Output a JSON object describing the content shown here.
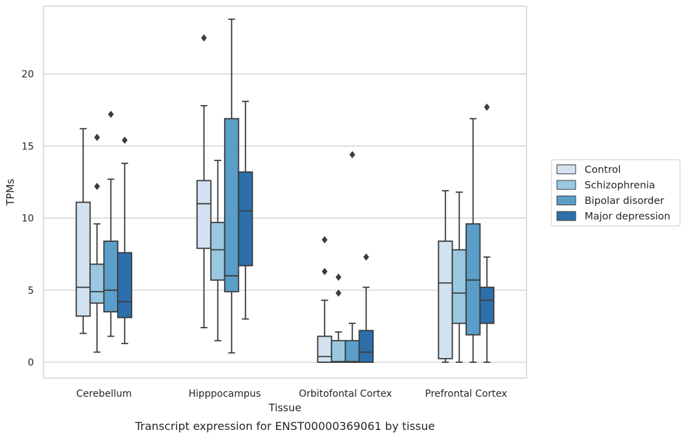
{
  "chart_data": {
    "type": "boxplot",
    "caption": "Transcript expression for ENST00000369061 by tissue",
    "xlabel": "Tissue",
    "ylabel": "TPMs",
    "ylim": [
      -1.1,
      24.7
    ],
    "yticks": [
      0,
      5,
      10,
      15,
      20
    ],
    "grid": "horizontal",
    "legend_position": "right",
    "categories": [
      "Cerebellum",
      "Hipppocampus",
      "Orbitofontal Cortex",
      "Prefrontal Cortex"
    ],
    "series": [
      {
        "name": "Control",
        "color": "#d2e2f1",
        "boxes": [
          {
            "whisker_low": 2.0,
            "q1": 3.2,
            "median": 5.2,
            "q3": 11.1,
            "whisker_high": 16.2,
            "outliers": []
          },
          {
            "whisker_low": 2.4,
            "q1": 7.9,
            "median": 11.0,
            "q3": 12.6,
            "whisker_high": 17.8,
            "outliers": [
              22.5
            ]
          },
          {
            "whisker_low": 0.0,
            "q1": 0.0,
            "median": 0.4,
            "q3": 1.8,
            "whisker_high": 4.3,
            "outliers": [
              6.3,
              8.5
            ]
          },
          {
            "whisker_low": 0.0,
            "q1": 0.25,
            "median": 5.5,
            "q3": 8.4,
            "whisker_high": 11.9,
            "outliers": []
          }
        ]
      },
      {
        "name": "Schizophrenia",
        "color": "#9ac8e0",
        "boxes": [
          {
            "whisker_low": 0.7,
            "q1": 4.1,
            "median": 4.9,
            "q3": 6.8,
            "whisker_high": 9.6,
            "outliers": [
              12.2,
              15.6
            ]
          },
          {
            "whisker_low": 1.5,
            "q1": 5.7,
            "median": 7.8,
            "q3": 9.7,
            "whisker_high": 14.0,
            "outliers": []
          },
          {
            "whisker_low": 0.0,
            "q1": 0.0,
            "median": 0.05,
            "q3": 1.5,
            "whisker_high": 2.1,
            "outliers": [
              4.8,
              5.9
            ]
          },
          {
            "whisker_low": 0.0,
            "q1": 2.7,
            "median": 4.8,
            "q3": 7.8,
            "whisker_high": 11.8,
            "outliers": []
          }
        ]
      },
      {
        "name": "Bipolar disorder",
        "color": "#5a9ec9",
        "boxes": [
          {
            "whisker_low": 1.8,
            "q1": 3.5,
            "median": 5.0,
            "q3": 8.4,
            "whisker_high": 12.7,
            "outliers": [
              17.2
            ]
          },
          {
            "whisker_low": 0.65,
            "q1": 4.9,
            "median": 6.0,
            "q3": 16.9,
            "whisker_high": 23.8,
            "outliers": []
          },
          {
            "whisker_low": 0.0,
            "q1": 0.0,
            "median": 0.05,
            "q3": 1.5,
            "whisker_high": 2.7,
            "outliers": [
              14.4
            ]
          },
          {
            "whisker_low": 0.0,
            "q1": 1.9,
            "median": 5.7,
            "q3": 9.6,
            "whisker_high": 16.9,
            "outliers": []
          }
        ]
      },
      {
        "name": "Major depression",
        "color": "#2c6fac",
        "boxes": [
          {
            "whisker_low": 1.3,
            "q1": 3.1,
            "median": 4.2,
            "q3": 7.6,
            "whisker_high": 13.8,
            "outliers": [
              15.4
            ]
          },
          {
            "whisker_low": 3.0,
            "q1": 6.7,
            "median": 10.5,
            "q3": 13.2,
            "whisker_high": 18.1,
            "outliers": []
          },
          {
            "whisker_low": 0.0,
            "q1": 0.0,
            "median": 0.7,
            "q3": 2.2,
            "whisker_high": 5.2,
            "outliers": [
              7.3
            ]
          },
          {
            "whisker_low": 0.0,
            "q1": 2.7,
            "median": 4.3,
            "q3": 5.2,
            "whisker_high": 7.3,
            "outliers": [
              17.7
            ]
          }
        ]
      }
    ],
    "colors": {
      "grid": "#cccccc",
      "frame": "#cccccc",
      "line": "#3c3c3c"
    }
  }
}
